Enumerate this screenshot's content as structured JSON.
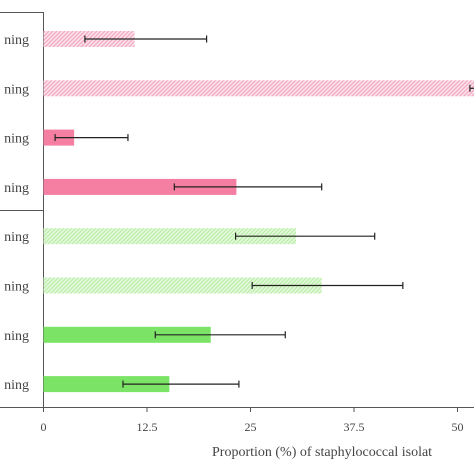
{
  "chart_data": {
    "type": "bar",
    "orientation": "horizontal",
    "categories": [
      "ning",
      "ning",
      "ning",
      "ning",
      "ning",
      "ning",
      "ning",
      "ning"
    ],
    "values": [
      11,
      52,
      3.7,
      23.3,
      30.5,
      33.6,
      20.2,
      15.2
    ],
    "error_low": [
      6,
      0.5,
      2.3,
      7.5,
      7.3,
      8.4,
      6.7,
      5.6
    ],
    "error_high": [
      8.7,
      0.5,
      6.5,
      10.3,
      9.5,
      9.8,
      9,
      8.4
    ],
    "colors": [
      "#f3a6c0",
      "#f3a6c0",
      "#f47fa3",
      "#f47fa3",
      "#b9efa6",
      "#b9efa6",
      "#7be466",
      "#7be466"
    ],
    "hatched": [
      true,
      true,
      false,
      false,
      true,
      true,
      false,
      false
    ],
    "xticks": [
      "0",
      "12.5",
      "25",
      "37.5",
      "50"
    ],
    "xtick_values": [
      0,
      12.5,
      25,
      37.5,
      50
    ],
    "xlabel": "Proportion (%) of staphylococcal isolat",
    "xlim": [
      0,
      52
    ]
  }
}
